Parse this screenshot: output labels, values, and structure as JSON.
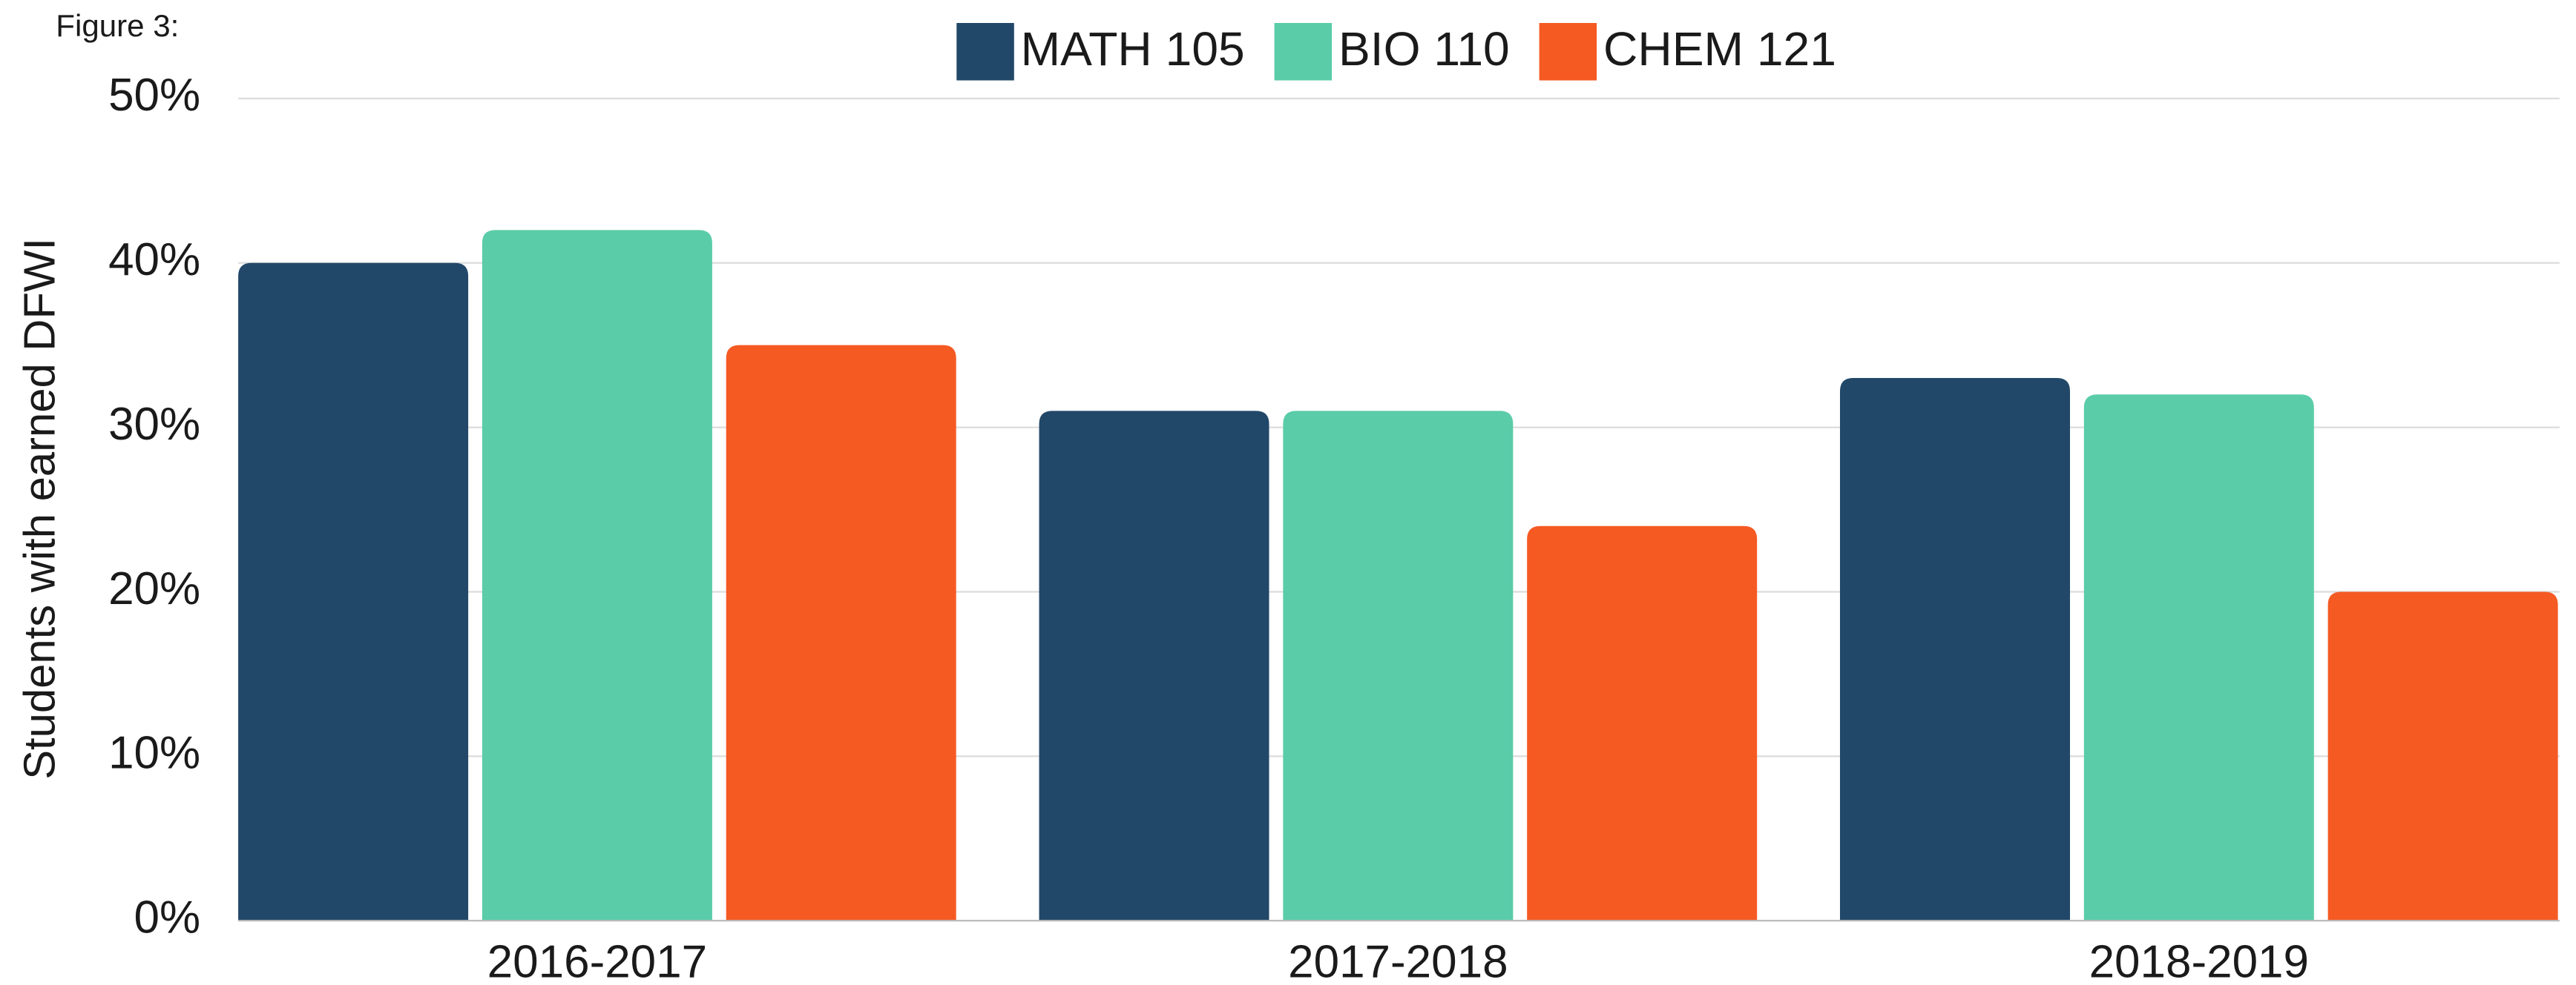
{
  "chart_data": {
    "type": "bar",
    "title": "Figure 3:",
    "y_label": "Students with earned DFWI",
    "categories": [
      "2016-2017",
      "2017-2018",
      "2018-2019"
    ],
    "series": [
      {
        "name": "MATH 105",
        "color": "#224869",
        "values": [
          40,
          31,
          33
        ]
      },
      {
        "name": "BIO 110",
        "color": "#5acca8",
        "values": [
          42,
          31,
          32
        ]
      },
      {
        "name": "CHEM 121",
        "color": "#f55a23",
        "values": [
          35,
          24,
          20
        ]
      }
    ],
    "ylim": [
      0,
      50
    ],
    "yticks": [
      {
        "value": 0,
        "label": "0%"
      },
      {
        "value": 10,
        "label": "10%"
      },
      {
        "value": 20,
        "label": "20%"
      },
      {
        "value": 30,
        "label": "30%"
      },
      {
        "value": 40,
        "label": "40%"
      },
      {
        "value": 50,
        "label": "50%"
      }
    ],
    "grid": true,
    "legend": "top"
  }
}
